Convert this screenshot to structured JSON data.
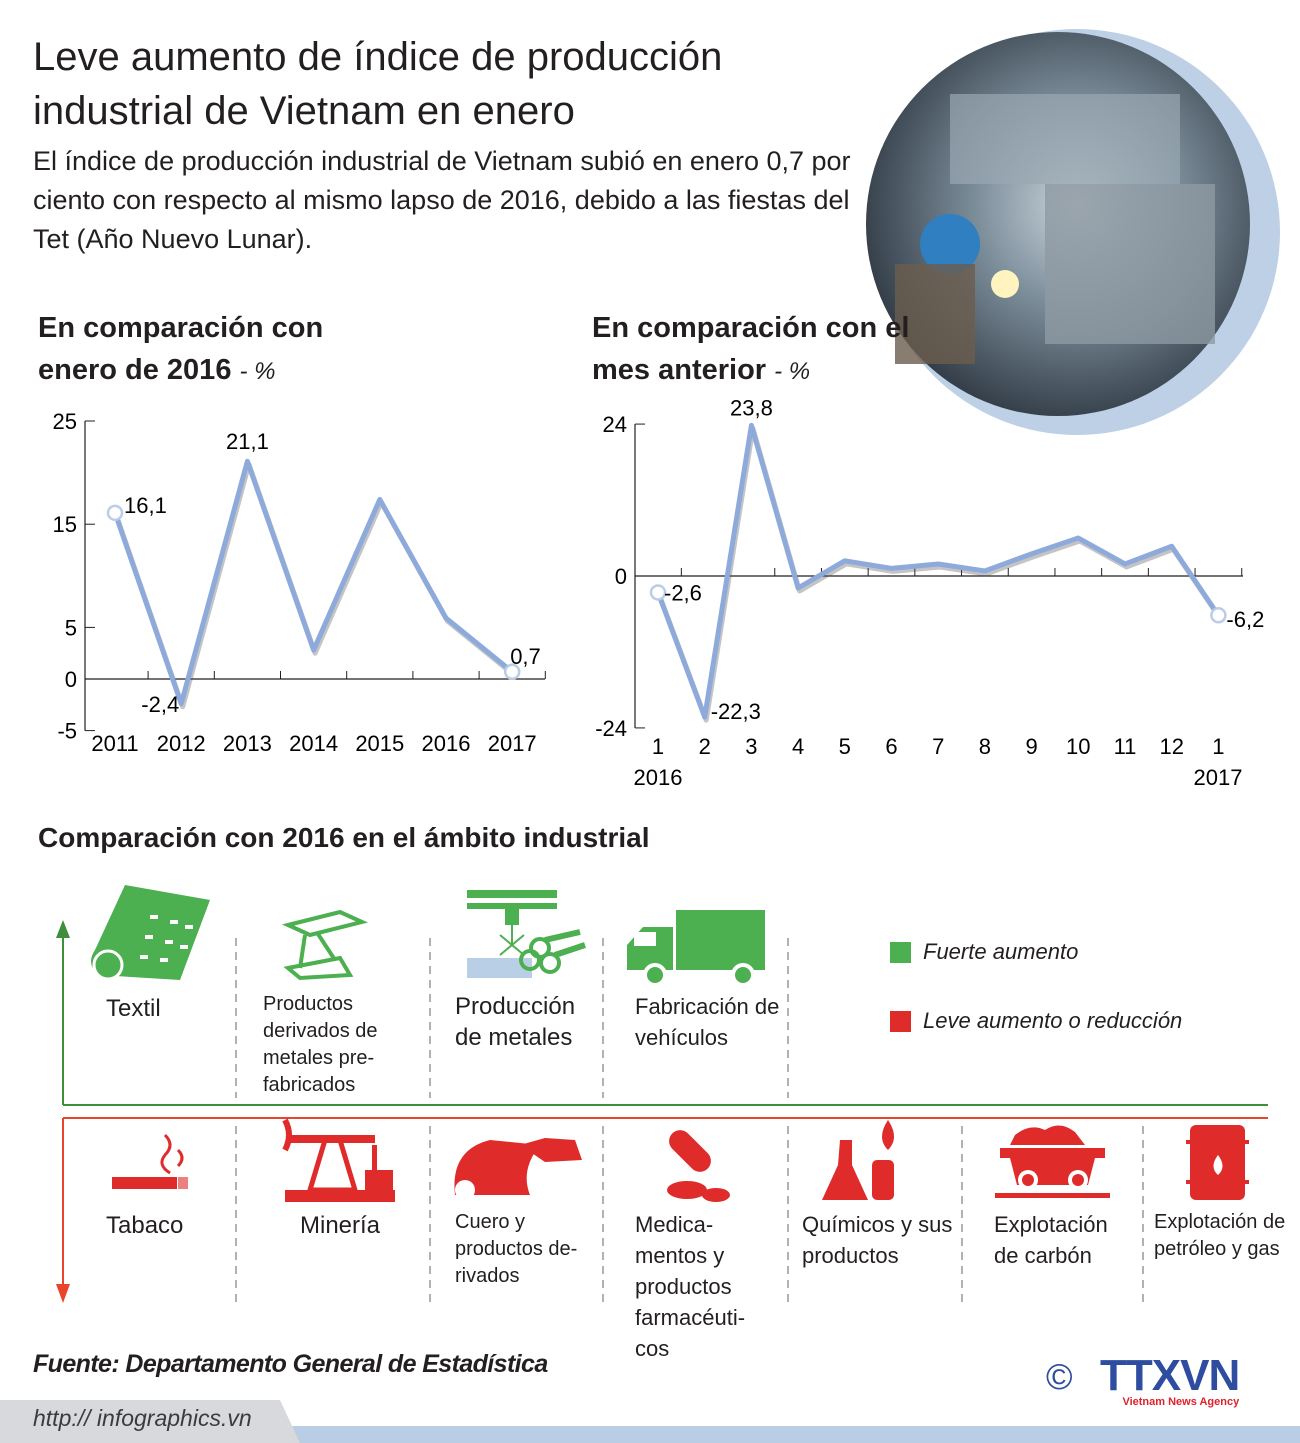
{
  "header": {
    "title": "Leve aumento de índice de producción industrial de Vietnam en enero",
    "subtitle": "El índice de producción industrial de Vietnam subió en enero 0,7 por ciento con respecto al mismo lapso de 2016, debido a las fiestas del Tet (Año Nuevo Lunar)."
  },
  "colors": {
    "line": "#8eaadb",
    "increase": "#4caf50",
    "decrease": "#e02b2b",
    "brand_blue": "#2e4da0",
    "brand_red": "#e0202a"
  },
  "chart_data": [
    {
      "type": "line",
      "title": "En comparación con enero de 2016",
      "unit": "- %",
      "categories": [
        "2011",
        "2012",
        "2013",
        "2014",
        "2015",
        "2016",
        "2017"
      ],
      "values": [
        16.1,
        -2.4,
        21.1,
        2.8,
        17.4,
        5.9,
        0.7
      ],
      "data_labels": [
        "16,1",
        "-2,4",
        "21,1",
        "",
        "",
        "",
        "0,7"
      ],
      "yticks": [
        "25",
        "15",
        "5",
        "0",
        "-5"
      ],
      "ytick_values": [
        25,
        15,
        5,
        0,
        -5
      ],
      "ylim": [
        -5,
        25
      ]
    },
    {
      "type": "line",
      "title": "En comparación con el mes anterior",
      "unit": "- %",
      "categories": [
        "1",
        "2",
        "3",
        "4",
        "5",
        "6",
        "7",
        "8",
        "9",
        "10",
        "11",
        "12",
        "1"
      ],
      "year_labels": [
        "2016",
        "2017"
      ],
      "values": [
        -2.6,
        -22.3,
        23.8,
        -1.9,
        2.4,
        1.2,
        1.9,
        0.8,
        3.5,
        6.0,
        1.9,
        4.7,
        -6.2
      ],
      "data_labels": [
        "-2,6",
        "-22,3",
        "23,8",
        "",
        "",
        "",
        "",
        "",
        "",
        "",
        "",
        "",
        "-6,2"
      ],
      "yticks": [
        "24",
        "0",
        "-24"
      ],
      "ytick_values": [
        24,
        0,
        -24
      ],
      "ylim": [
        -24,
        24
      ]
    }
  ],
  "industries": {
    "title": "Comparación con 2016 en el ámbito industrial",
    "legend": {
      "strong": "Fuerte aumento",
      "weak": "Leve aumento o reducción"
    },
    "increase": [
      {
        "label": "Textil",
        "icon": "textile-icon"
      },
      {
        "label": "Productos derivados de metales pre-fabricados",
        "icon": "steel-beam-icon"
      },
      {
        "label": "Producción de metales",
        "icon": "metal-welding-icon"
      },
      {
        "label": "Fabricación de vehículos",
        "icon": "truck-icon"
      }
    ],
    "decrease": [
      {
        "label": "Tabaco",
        "icon": "cigarette-icon"
      },
      {
        "label": "Minería",
        "icon": "oil-pump-icon"
      },
      {
        "label": "Cuero y productos de-rivados",
        "icon": "leather-shoe-icon"
      },
      {
        "label": "Medica-mentos y productos farmacéuti-cos",
        "icon": "pills-icon"
      },
      {
        "label": "Químicos y sus productos",
        "icon": "chemical-flask-icon"
      },
      {
        "label": "Explotación de carbón",
        "icon": "coal-cart-icon"
      },
      {
        "label": "Explotación de petróleo y gas",
        "icon": "oil-barrel-icon"
      }
    ]
  },
  "footer": {
    "source": "Fuente: Departamento General de Estadística",
    "url": "http:// infographics.vn",
    "copyright": "©",
    "logo_text": "TTXVN",
    "logo_tagline": "Vietnam News Agency"
  }
}
